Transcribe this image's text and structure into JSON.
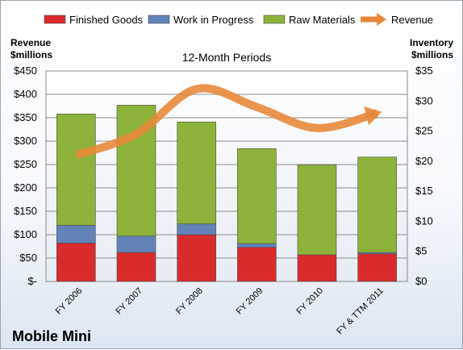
{
  "chart_data": {
    "type": "bar",
    "stacked": true,
    "subtitle": "12-Month Periods",
    "company": "Mobile Mini",
    "left_axis": {
      "title_line1": "Revenue",
      "title_line2": "$millions",
      "min": 0,
      "max": 450,
      "step": 50,
      "tick_labels": [
        "$-",
        "$50",
        "$100",
        "$150",
        "$200",
        "$250",
        "$300",
        "$350",
        "$400",
        "$450"
      ]
    },
    "right_axis": {
      "title_line1": "Inventory",
      "title_line2": "$millions",
      "min": 0,
      "max": 35,
      "step": 5,
      "tick_labels": [
        "$0",
        "$5",
        "$10",
        "$15",
        "$20",
        "$25",
        "$30",
        "$35"
      ]
    },
    "categories": [
      "FY 2006",
      "FY 2007",
      "FY 2008",
      "FY 2009",
      "FY 2010",
      "FY & TTM 2011"
    ],
    "series": [
      {
        "name": "Finished Goods",
        "axis": "left",
        "kind": "bar",
        "color": "#d92b2b",
        "values": [
          82,
          62,
          100,
          73,
          57,
          59
        ]
      },
      {
        "name": "Work in Progress",
        "axis": "left",
        "kind": "bar",
        "color": "#6383b8",
        "values": [
          38,
          35,
          23,
          8,
          0,
          3
        ]
      },
      {
        "name": "Raw Materials",
        "axis": "left",
        "kind": "bar",
        "color": "#8db33a",
        "values": [
          238,
          280,
          218,
          203,
          192,
          204
        ]
      },
      {
        "name": "Revenue",
        "axis": "right",
        "kind": "line",
        "color": "#e8883a",
        "values": [
          21,
          24.5,
          32,
          29,
          25.5,
          28
        ]
      }
    ],
    "legend_position": "top",
    "grid": true
  }
}
